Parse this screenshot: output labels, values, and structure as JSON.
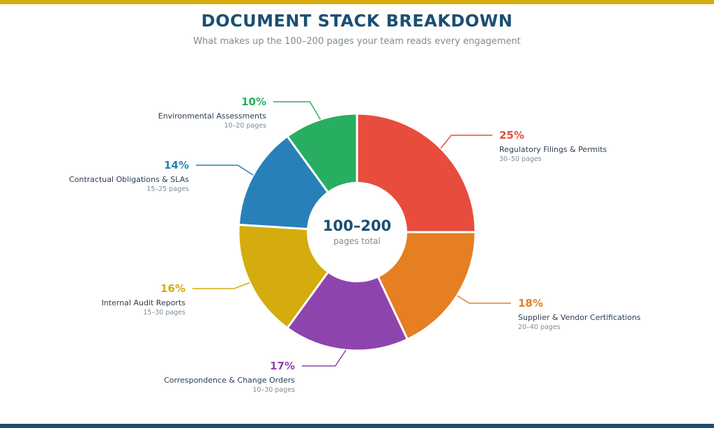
{
  "header": {
    "title": "DOCUMENT STACK BREAKDOWN",
    "subtitle": "What makes up the 100–200 pages your team reads every engagement"
  },
  "chart_data": {
    "type": "pie",
    "center_value": "100–200",
    "center_label": "pages total",
    "slices": [
      {
        "label": "Regulatory Filings & Permits",
        "value": 25,
        "value_label": "25%",
        "pages": "30–50 pages",
        "color": "#E74C3C"
      },
      {
        "label": "Supplier & Vendor Certifications",
        "value": 18,
        "value_label": "18%",
        "pages": "20–40 pages",
        "color": "#E67E22"
      },
      {
        "label": "Correspondence & Change Orders",
        "value": 17,
        "value_label": "17%",
        "pages": "10–30 pages",
        "color": "#8E44AD"
      },
      {
        "label": "Internal Audit Reports",
        "value": 16,
        "value_label": "16%",
        "pages": "15–30 pages",
        "color": "#D4AC0D"
      },
      {
        "label": "Contractual Obligations & SLAs",
        "value": 14,
        "value_label": "14%",
        "pages": "15–25 pages",
        "color": "#2980B9"
      },
      {
        "label": "Environmental Assessments",
        "value": 10,
        "value_label": "10%",
        "pages": "10–20 pages",
        "color": "#27AE60"
      }
    ]
  }
}
